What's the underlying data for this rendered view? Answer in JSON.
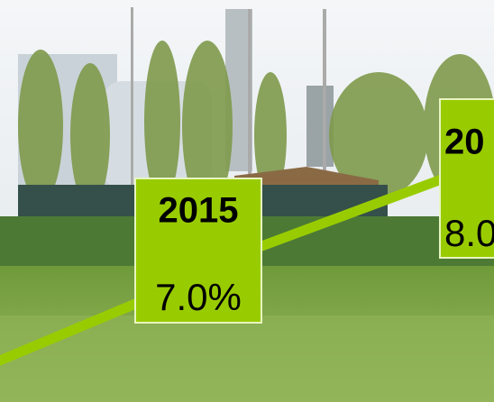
{
  "callouts": [
    {
      "year": "2015",
      "value": "7.0%"
    },
    {
      "year": "20",
      "value": "8.0"
    }
  ]
}
